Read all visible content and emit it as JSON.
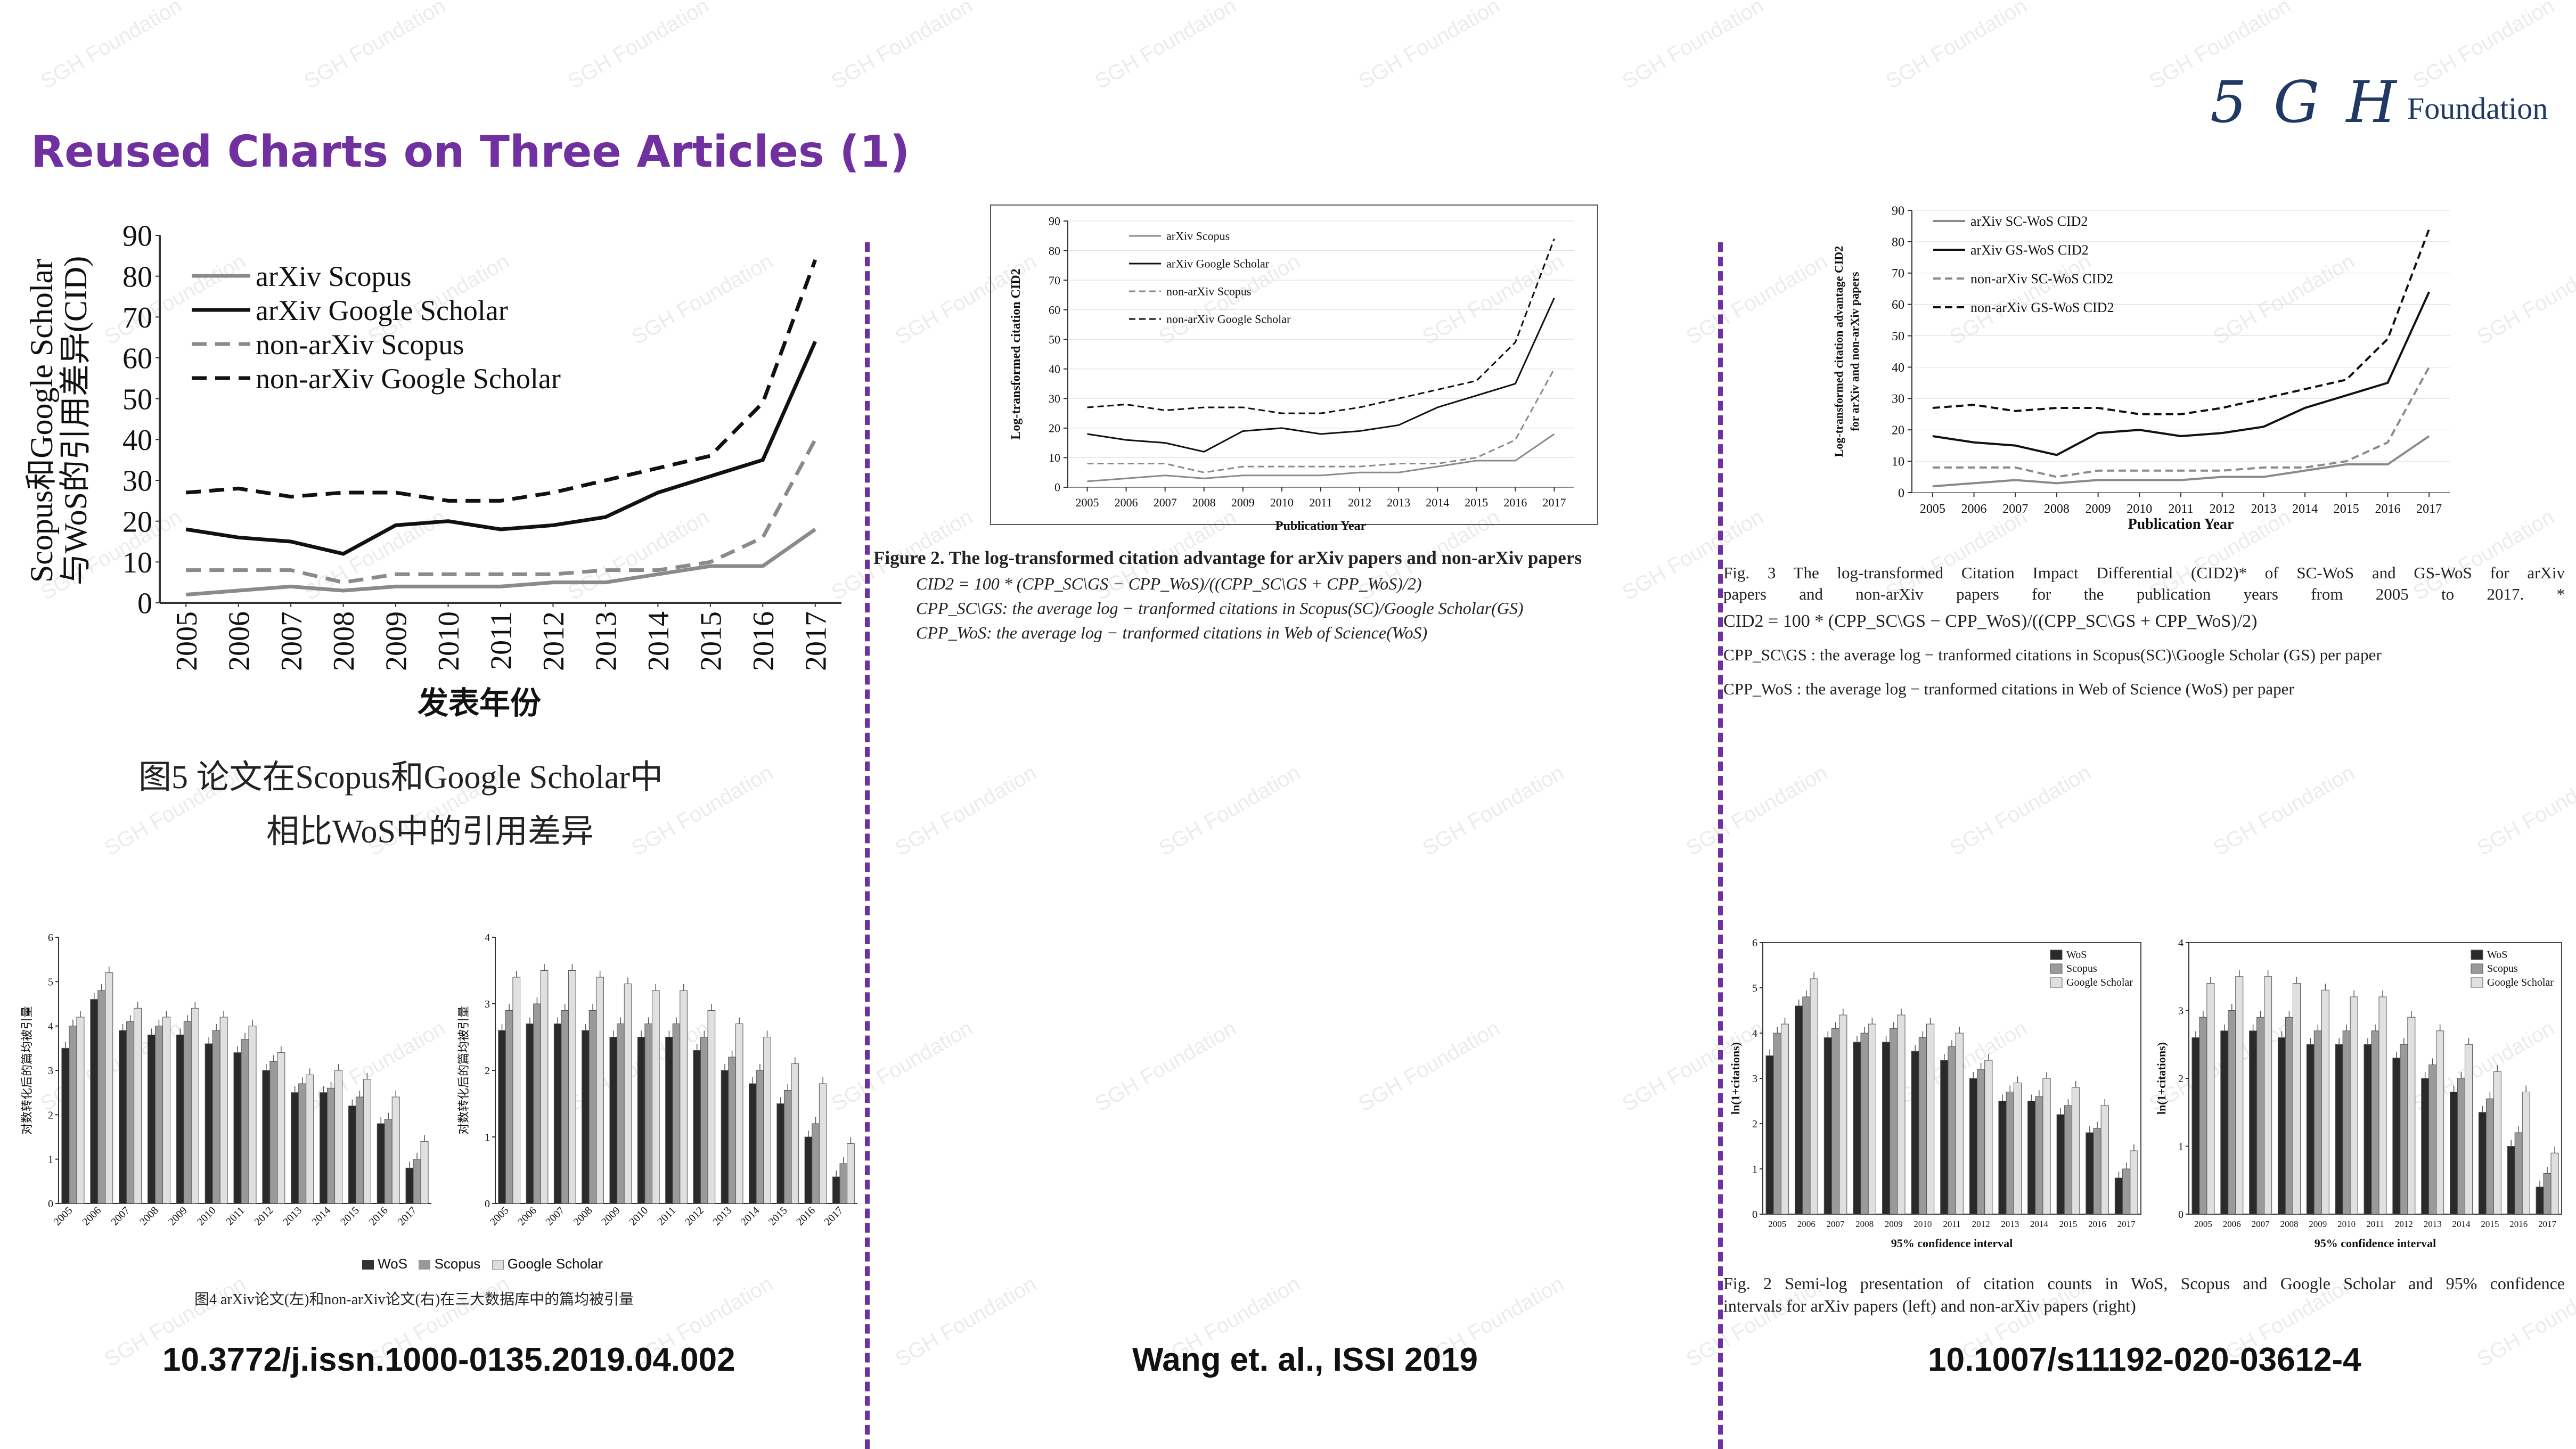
{
  "slide": {
    "title": "Reused Charts on Three Articles (1)",
    "logo": {
      "mark": "5 G H",
      "word": "Foundation"
    },
    "watermark": "SGH Foundation"
  },
  "left": {
    "reference": "10.3772/j.issn.1000-0135.2019.04.002",
    "line_chart": {
      "ylabel_line1": "Scopus和Google Scholar",
      "ylabel_line2": "与WoS的引用差异(CID)",
      "xlabel": "发表年份",
      "caption_line1": "图5 论文在Scopus和Google Scholar中",
      "caption_line2": "相比WoS中的引用差异"
    },
    "bar_charts": {
      "ylabel": "对数转化后的篇均被引量",
      "legend": [
        "WoS",
        "Scopus",
        "Google Scholar"
      ],
      "caption": "图4 arXiv论文(左)和non-arXiv论文(右)在三大数据库中的篇均被引量"
    }
  },
  "middle": {
    "reference": "Wang et. al., ISSI 2019",
    "line_chart": {
      "ylabel": "Log-transformed citation CID2",
      "xlabel": "Publication Year",
      "caption": "Figure 2. The log-transformed citation advantage for arXiv papers and non-arXiv papers"
    },
    "formula_lines": [
      "CID2 = 100 * (CPP_SC\\GS − CPP_WoS)/((CPP_SC\\GS + CPP_WoS)/2)",
      "CPP_SC\\GS: the average log − tranformed citations in Scopus(SC)/Google Scholar(GS)",
      "CPP_WoS: the average log − tranformed citations in Web of Science(WoS)"
    ]
  },
  "right": {
    "reference": "10.1007/s11192-020-03612-4",
    "line_chart": {
      "ylabel_line1": "Log-transformed citation advantage CID2",
      "ylabel_line2": "for arXiv and non-arXiv papers",
      "xlabel": "Publication Year"
    },
    "caption_lines": [
      "Fig. 3  The log-transformed Citation Impact Differential (CID2)* of SC-WoS and GS-WoS for arXiv",
      "papers and non-arXiv papers for the publication years from 2005 to 2017. *",
      "CID2 = 100 * (CPP_SC\\GS − CPP_WoS)/((CPP_SC\\GS + CPP_WoS)/2)",
      "CPP_SC\\GS : the average log − tranformed citations in Scopus(SC)\\Google Scholar (GS) per paper",
      "CPP_WoS : the average log − tranformed citations in Web of Science (WoS) per paper"
    ],
    "bar_charts": {
      "ylabel": "ln(1+citations)",
      "xlabel": "95% confidence interval",
      "legend": [
        "WoS",
        "Scopus",
        "Google Scholar"
      ],
      "caption_line1": "Fig. 2  Semi-log presentation of citation counts in WoS, Scopus and Google Scholar and 95% confidence",
      "caption_line2": "intervals for arXiv papers (left) and non-arXiv papers (right)"
    }
  },
  "chart_data": [
    {
      "type": "line",
      "x": [
        2005,
        2006,
        2007,
        2008,
        2009,
        2010,
        2011,
        2012,
        2013,
        2014,
        2015,
        2016,
        2017
      ],
      "ylim": [
        0,
        90
      ],
      "yticks": [
        0,
        10,
        20,
        30,
        40,
        50,
        60,
        70,
        80,
        90
      ],
      "legend_position": "top-left",
      "series": [
        {
          "name": "arXiv Scopus",
          "style": "solid-grey",
          "values": [
            2,
            3,
            4,
            3,
            4,
            4,
            4,
            5,
            5,
            7,
            9,
            9,
            18
          ]
        },
        {
          "name": "arXiv Google Scholar",
          "style": "solid-black",
          "values": [
            18,
            16,
            15,
            12,
            19,
            20,
            18,
            19,
            21,
            27,
            31,
            35,
            64
          ]
        },
        {
          "name": "non-arXiv Scopus",
          "style": "dashed-grey",
          "values": [
            8,
            8,
            8,
            5,
            7,
            7,
            7,
            7,
            8,
            8,
            10,
            16,
            40
          ]
        },
        {
          "name": "non-arXiv Google Scholar",
          "style": "dashed-black",
          "values": [
            27,
            28,
            26,
            27,
            27,
            25,
            25,
            27,
            30,
            33,
            36,
            49,
            84
          ]
        }
      ],
      "legend_style": "serif"
    },
    {
      "type": "line",
      "x": [
        2005,
        2006,
        2007,
        2008,
        2009,
        2010,
        2011,
        2012,
        2013,
        2014,
        2015,
        2016,
        2017
      ],
      "ylim": [
        0,
        90
      ],
      "legend_position": "top-left",
      "series": [
        {
          "name": "arXiv SC-WoS CID2",
          "style": "solid-grey",
          "values": [
            2,
            3,
            4,
            3,
            4,
            4,
            4,
            5,
            5,
            7,
            9,
            9,
            18
          ]
        },
        {
          "name": "arXiv GS-WoS CID2",
          "style": "solid-black",
          "values": [
            18,
            16,
            15,
            12,
            19,
            20,
            18,
            19,
            21,
            27,
            31,
            35,
            64
          ]
        },
        {
          "name": "non-arXiv SC-WoS CID2",
          "style": "dashed-grey",
          "values": [
            8,
            8,
            8,
            5,
            7,
            7,
            7,
            7,
            8,
            8,
            10,
            16,
            40
          ]
        },
        {
          "name": "non-arXiv GS-WoS CID2",
          "style": "dashed-black",
          "values": [
            27,
            28,
            26,
            27,
            27,
            25,
            25,
            27,
            30,
            33,
            36,
            49,
            84
          ]
        }
      ]
    },
    {
      "type": "bar",
      "categories": [
        "2005",
        "2006",
        "2007",
        "2008",
        "2009",
        "2010",
        "2011",
        "2012",
        "2013",
        "2014",
        "2015",
        "2016",
        "2017"
      ],
      "ylim": [
        0,
        6
      ],
      "series": [
        {
          "name": "WoS",
          "values": [
            3.5,
            4.6,
            3.9,
            3.8,
            3.8,
            3.6,
            3.4,
            3.0,
            2.5,
            2.5,
            2.2,
            1.8,
            0.8
          ]
        },
        {
          "name": "Scopus",
          "values": [
            4.0,
            4.8,
            4.1,
            4.0,
            4.1,
            3.9,
            3.7,
            3.2,
            2.7,
            2.6,
            2.4,
            1.9,
            1.0
          ]
        },
        {
          "name": "Google Scholar",
          "values": [
            4.2,
            5.2,
            4.4,
            4.2,
            4.4,
            4.2,
            4.0,
            3.4,
            2.9,
            3.0,
            2.8,
            2.4,
            1.4
          ]
        }
      ],
      "legend_position": "bottom"
    },
    {
      "type": "bar",
      "categories": [
        "2005",
        "2006",
        "2007",
        "2008",
        "2009",
        "2010",
        "2011",
        "2012",
        "2013",
        "2014",
        "2015",
        "2016",
        "2017"
      ],
      "ylim": [
        0,
        4
      ],
      "series": [
        {
          "name": "WoS",
          "values": [
            2.6,
            2.7,
            2.7,
            2.6,
            2.5,
            2.5,
            2.5,
            2.3,
            2.0,
            1.8,
            1.5,
            1.0,
            0.4
          ]
        },
        {
          "name": "Scopus",
          "values": [
            2.9,
            3.0,
            2.9,
            2.9,
            2.7,
            2.7,
            2.7,
            2.5,
            2.2,
            2.0,
            1.7,
            1.2,
            0.6
          ]
        },
        {
          "name": "Google Scholar",
          "values": [
            3.4,
            3.5,
            3.5,
            3.4,
            3.3,
            3.2,
            3.2,
            2.9,
            2.7,
            2.5,
            2.1,
            1.8,
            0.9
          ]
        }
      ],
      "legend_position": "bottom"
    },
    {
      "type": "bar",
      "categories": [
        "2005",
        "2006",
        "2007",
        "2008",
        "2009",
        "2010",
        "2011",
        "2012",
        "2013",
        "2014",
        "2015",
        "2016",
        "2017"
      ],
      "ylim": [
        0,
        6
      ],
      "series": [
        {
          "name": "WoS",
          "values": [
            3.5,
            4.6,
            3.9,
            3.8,
            3.8,
            3.6,
            3.4,
            3.0,
            2.5,
            2.5,
            2.2,
            1.8,
            0.8
          ]
        },
        {
          "name": "Scopus",
          "values": [
            4.0,
            4.8,
            4.1,
            4.0,
            4.1,
            3.9,
            3.7,
            3.2,
            2.7,
            2.6,
            2.4,
            1.9,
            1.0
          ]
        },
        {
          "name": "Google Scholar",
          "values": [
            4.2,
            5.2,
            4.4,
            4.2,
            4.4,
            4.2,
            4.0,
            3.4,
            2.9,
            3.0,
            2.8,
            2.4,
            1.4
          ]
        }
      ],
      "legend_position": "top-right"
    },
    {
      "type": "bar",
      "categories": [
        "2005",
        "2006",
        "2007",
        "2008",
        "2009",
        "2010",
        "2011",
        "2012",
        "2013",
        "2014",
        "2015",
        "2016",
        "2017"
      ],
      "ylim": [
        0,
        4
      ],
      "series": [
        {
          "name": "WoS",
          "values": [
            2.6,
            2.7,
            2.7,
            2.6,
            2.5,
            2.5,
            2.5,
            2.3,
            2.0,
            1.8,
            1.5,
            1.0,
            0.4
          ]
        },
        {
          "name": "Scopus",
          "values": [
            2.9,
            3.0,
            2.9,
            2.9,
            2.7,
            2.7,
            2.7,
            2.5,
            2.2,
            2.0,
            1.7,
            1.2,
            0.6
          ]
        },
        {
          "name": "Google Scholar",
          "values": [
            3.4,
            3.5,
            3.5,
            3.4,
            3.3,
            3.2,
            3.2,
            2.9,
            2.7,
            2.5,
            2.1,
            1.8,
            0.9
          ]
        }
      ],
      "legend_position": "top-right"
    }
  ]
}
